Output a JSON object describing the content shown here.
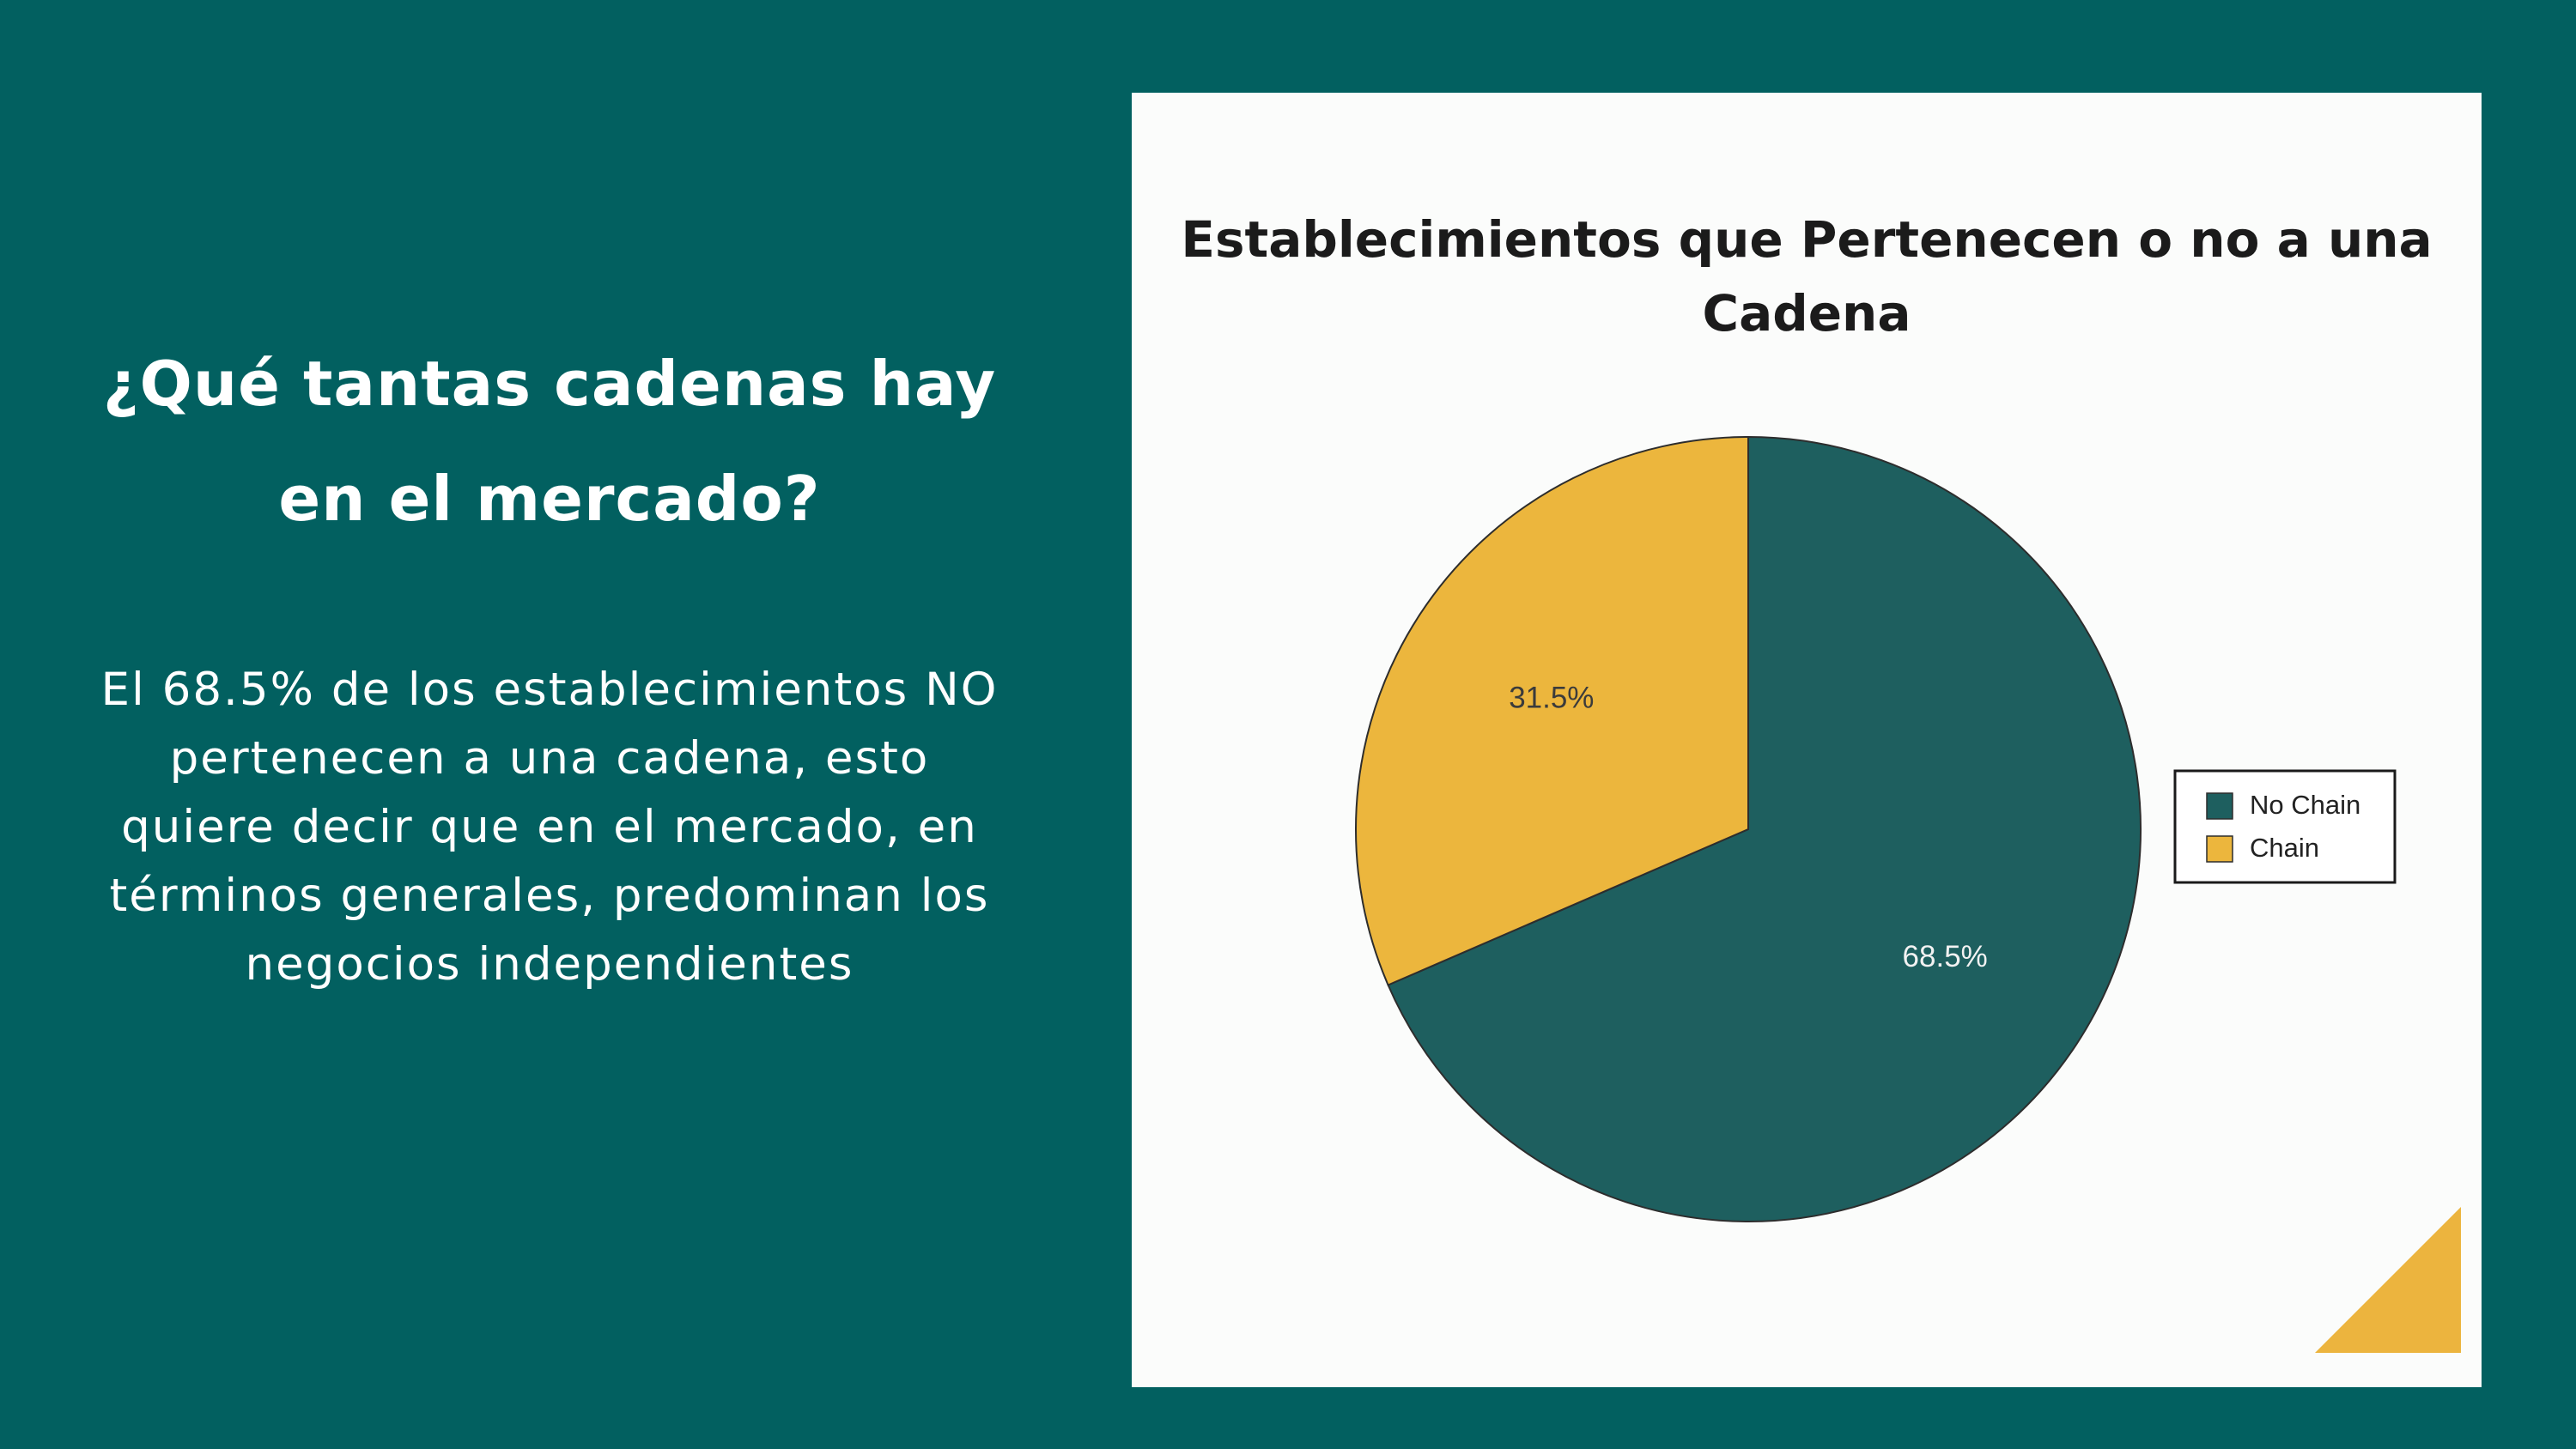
{
  "slide": {
    "heading_line1": "¿Qué tantas cadenas hay",
    "heading_line2": "en el mercado?",
    "body": "El 68.5% de los establecimientos NO pertenecen a una cadena, esto quiere decir que en el mercado, en términos generales, predominan los negocios independientes"
  },
  "colors": {
    "background": "#026060",
    "no_chain": "#1e5f5f",
    "chain": "#ecb63d",
    "accent_triangle": "#ecb43e"
  },
  "chart_data": {
    "type": "pie",
    "title_line1": "Establecimientos que Pertenecen o no a una",
    "title_line2": "Cadena",
    "categories": [
      "No Chain",
      "Chain"
    ],
    "values": [
      68.5,
      31.5
    ],
    "labels": [
      "68.5%",
      "31.5%"
    ],
    "start_angle": "12 o'clock",
    "direction": "clockwise",
    "legend_position": "right"
  }
}
